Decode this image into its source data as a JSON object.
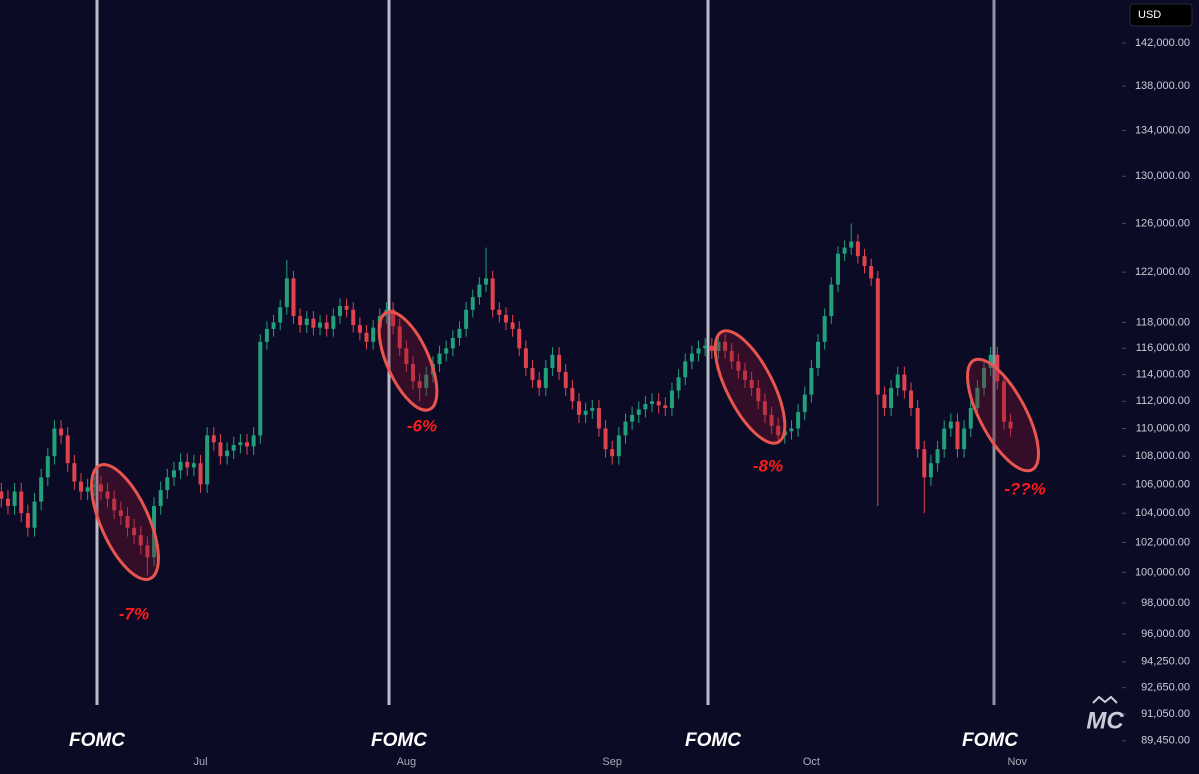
{
  "chart_data": {
    "type": "candlestick",
    "currency": "USD",
    "logo": "MC",
    "log_scale": true,
    "up_color": "#22a07a",
    "down_color": "#e0434d",
    "ylim": [
      87500,
      146100
    ],
    "yticks": [
      {
        "value": 142000,
        "label": "142,000.00"
      },
      {
        "value": 138000,
        "label": "138,000.00"
      },
      {
        "value": 134000,
        "label": "134,000.00"
      },
      {
        "value": 130000,
        "label": "130,000.00"
      },
      {
        "value": 126000,
        "label": "126,000.00"
      },
      {
        "value": 122000,
        "label": "122,000.00"
      },
      {
        "value": 118000,
        "label": "118,000.00"
      },
      {
        "value": 116000,
        "label": "116,000.00"
      },
      {
        "value": 114000,
        "label": "114,000.00"
      },
      {
        "value": 112000,
        "label": "112,000.00"
      },
      {
        "value": 110000,
        "label": "110,000.00"
      },
      {
        "value": 108000,
        "label": "108,000.00"
      },
      {
        "value": 106000,
        "label": "106,000.00"
      },
      {
        "value": 104000,
        "label": "104,000.00"
      },
      {
        "value": 102000,
        "label": "102,000.00"
      },
      {
        "value": 100000,
        "label": "100,000.00"
      },
      {
        "value": 98000,
        "label": "98,000.00"
      },
      {
        "value": 96000,
        "label": "96,000.00"
      },
      {
        "value": 94250,
        "label": "94,250.00"
      },
      {
        "value": 92650,
        "label": "92,650.00"
      },
      {
        "value": 91050,
        "label": "91,050.00"
      },
      {
        "value": 89450,
        "label": "89,450.00"
      }
    ],
    "categories": [
      null,
      null,
      null,
      null,
      null,
      null,
      null,
      null,
      null,
      null,
      null,
      null,
      null,
      null,
      null,
      null,
      null,
      null,
      null,
      null,
      null,
      null,
      null,
      null,
      null,
      null,
      null,
      null,
      null,
      null,
      "Jul",
      null,
      null,
      null,
      null,
      null,
      null,
      null,
      null,
      null,
      null,
      null,
      null,
      null,
      null,
      null,
      null,
      null,
      null,
      null,
      null,
      null,
      null,
      null,
      null,
      null,
      null,
      null,
      null,
      null,
      null,
      "Aug",
      null,
      null,
      null,
      null,
      null,
      null,
      null,
      null,
      null,
      null,
      null,
      null,
      null,
      null,
      null,
      null,
      null,
      null,
      null,
      null,
      null,
      null,
      null,
      null,
      null,
      null,
      null,
      null,
      null,
      null,
      "Sep",
      null,
      null,
      null,
      null,
      null,
      null,
      null,
      null,
      null,
      null,
      null,
      null,
      null,
      null,
      null,
      null,
      null,
      null,
      null,
      null,
      null,
      null,
      null,
      null,
      null,
      null,
      null,
      null,
      null,
      "Oct",
      null,
      null,
      null,
      null,
      null,
      null,
      null,
      null,
      null,
      null,
      null,
      null,
      null,
      null,
      null,
      null,
      null,
      null,
      null,
      null,
      null,
      null,
      null,
      null,
      null,
      null,
      null,
      null,
      null,
      null,
      "Nov"
    ],
    "open": [
      105500,
      105000,
      104500,
      105500,
      104000,
      103000,
      104800,
      106500,
      108000,
      110000,
      109500,
      107500,
      106200,
      105500,
      105800,
      106000,
      105500,
      105000,
      104200,
      103800,
      103000,
      102500,
      101800,
      101000,
      104500,
      105600,
      106500,
      107000,
      107600,
      107200,
      107500,
      106000,
      109500,
      109000,
      108000,
      108400,
      108800,
      109000,
      108700,
      109500,
      116500,
      117500,
      118000,
      119200,
      121500,
      118500,
      117800,
      118300,
      117600,
      118000,
      117500,
      118500,
      119300,
      119000,
      117800,
      117200,
      116500,
      117600,
      118500,
      119000,
      117700,
      116000,
      114800,
      113500,
      113000,
      114000,
      114800,
      115600,
      116000,
      116800,
      117500,
      119000,
      120000,
      121000,
      121500,
      119000,
      118600,
      118000,
      117500,
      116000,
      114500,
      113600,
      113000,
      114500,
      115500,
      114200,
      113000,
      112000,
      111000,
      111300,
      111500,
      110000,
      108500,
      108000,
      109500,
      110500,
      111000,
      111400,
      111800,
      112000,
      111700,
      111500,
      112800,
      113800,
      115000,
      115600,
      116000,
      116200,
      115800,
      116500,
      115800,
      115000,
      114300,
      113600,
      113000,
      112000,
      111000,
      110200,
      109500,
      109800,
      110000,
      111200,
      112500,
      114500,
      116500,
      118500,
      121000,
      123500,
      124000,
      124500,
      123300,
      122500,
      121500,
      112500,
      111500,
      113000,
      114000,
      112800,
      111500,
      108500,
      106500,
      107500,
      108500,
      110000,
      110500,
      108500,
      110000,
      111500,
      113000,
      114500,
      115500,
      113500,
      110500,
      null
    ],
    "high": [
      106100,
      105600,
      106100,
      106100,
      104600,
      105400,
      107100,
      108600,
      110600,
      110600,
      110100,
      108100,
      106800,
      106400,
      106600,
      106600,
      106100,
      105600,
      104800,
      104400,
      103600,
      103100,
      102400,
      105100,
      106200,
      107100,
      107600,
      108200,
      108200,
      108100,
      108100,
      110100,
      110100,
      109600,
      109000,
      109400,
      109600,
      109600,
      110100,
      117100,
      118100,
      118600,
      119800,
      123000,
      122100,
      119100,
      118900,
      118900,
      118600,
      118600,
      119100,
      119900,
      119900,
      119600,
      118400,
      117800,
      118200,
      119100,
      119600,
      119600,
      118300,
      116600,
      115400,
      114100,
      114600,
      115400,
      116200,
      116600,
      117400,
      118100,
      119600,
      120600,
      121600,
      124000,
      122100,
      119600,
      119200,
      118600,
      118100,
      116600,
      115100,
      114200,
      115100,
      116100,
      116100,
      114800,
      113600,
      112600,
      111900,
      112100,
      112100,
      110600,
      109100,
      110100,
      111100,
      111600,
      112000,
      112400,
      112600,
      112600,
      112300,
      113400,
      114400,
      115600,
      116200,
      116600,
      116800,
      116800,
      117100,
      117100,
      116400,
      115600,
      114900,
      114200,
      113600,
      112600,
      111600,
      110800,
      110400,
      110600,
      111800,
      113100,
      115100,
      117100,
      119100,
      121600,
      124100,
      124600,
      126000,
      125100,
      123900,
      123100,
      122100,
      113100,
      113600,
      114600,
      114600,
      113400,
      112100,
      109100,
      108100,
      109100,
      110600,
      111100,
      111100,
      110600,
      112100,
      113600,
      115100,
      116100,
      116100,
      114100,
      111100,
      null
    ],
    "low": [
      104400,
      103900,
      103900,
      103400,
      102400,
      102400,
      104200,
      105900,
      107400,
      108900,
      106900,
      105600,
      104900,
      104900,
      105200,
      104900,
      104400,
      103600,
      103200,
      102400,
      101900,
      101200,
      99800,
      100400,
      103900,
      105000,
      105900,
      106400,
      106600,
      106600,
      105400,
      105400,
      108400,
      107400,
      107400,
      107800,
      108200,
      108100,
      108100,
      108900,
      115900,
      116900,
      117400,
      118600,
      117900,
      117200,
      117200,
      117000,
      117000,
      116900,
      116900,
      117900,
      118400,
      117200,
      116600,
      115900,
      115900,
      117000,
      117900,
      117100,
      115400,
      114200,
      112900,
      112000,
      112400,
      113400,
      114200,
      115000,
      115400,
      116200,
      116900,
      118400,
      119400,
      120400,
      118400,
      118000,
      117400,
      116900,
      115400,
      113900,
      113000,
      112400,
      112400,
      113900,
      113600,
      112400,
      111400,
      110400,
      110400,
      110700,
      109400,
      107900,
      107400,
      107400,
      108900,
      109900,
      110400,
      110800,
      111200,
      111100,
      110900,
      110900,
      112200,
      113200,
      114400,
      115000,
      115400,
      115200,
      115200,
      115200,
      114400,
      113700,
      113000,
      112400,
      111400,
      110400,
      109600,
      108900,
      108900,
      109200,
      109400,
      110600,
      111900,
      113900,
      115900,
      117900,
      120400,
      122900,
      123400,
      122700,
      121900,
      120900,
      104500,
      110900,
      110900,
      112400,
      112200,
      110900,
      107900,
      104000,
      105900,
      106900,
      107900,
      109400,
      107900,
      107900,
      109400,
      110900,
      112400,
      113900,
      112900,
      109900,
      109400,
      null
    ],
    "close": [
      105000,
      104500,
      105500,
      104000,
      103000,
      104800,
      106500,
      108000,
      110000,
      109500,
      107500,
      106200,
      105500,
      105800,
      106000,
      105500,
      105000,
      104200,
      103800,
      103000,
      102500,
      101800,
      101000,
      104500,
      105600,
      106500,
      107000,
      107600,
      107200,
      107500,
      106000,
      109500,
      109000,
      108000,
      108400,
      108800,
      109000,
      108700,
      109500,
      116500,
      117500,
      118000,
      119200,
      121500,
      118500,
      117800,
      118300,
      117600,
      118000,
      117500,
      118500,
      119300,
      119000,
      117800,
      117200,
      116500,
      117600,
      118500,
      119000,
      117700,
      116000,
      114800,
      113500,
      113000,
      114000,
      114800,
      115600,
      116000,
      116800,
      117500,
      119000,
      120000,
      121000,
      121500,
      119000,
      118600,
      118000,
      117500,
      116000,
      114500,
      113600,
      113000,
      114500,
      115500,
      114200,
      113000,
      112000,
      111000,
      111300,
      111500,
      110000,
      108500,
      108000,
      109500,
      110500,
      111000,
      111400,
      111800,
      112000,
      111700,
      111500,
      112800,
      113800,
      115000,
      115600,
      116000,
      116200,
      115800,
      116500,
      115800,
      115000,
      114300,
      113600,
      113000,
      112000,
      111000,
      110200,
      109500,
      109800,
      110000,
      111200,
      112500,
      114500,
      116500,
      118500,
      121000,
      123500,
      124000,
      124500,
      123300,
      122500,
      121500,
      112500,
      111500,
      113000,
      114000,
      112800,
      111500,
      108500,
      106500,
      107500,
      108500,
      110000,
      110500,
      108500,
      110000,
      111500,
      113000,
      114500,
      115500,
      113500,
      110500,
      110000,
      null
    ],
    "annotations": [
      {
        "event": "FOMC",
        "change": "-7%"
      },
      {
        "event": "FOMC",
        "change": "-6%"
      },
      {
        "event": "FOMC",
        "change": "-8%"
      },
      {
        "event": "FOMC",
        "change": "-??%"
      }
    ]
  }
}
